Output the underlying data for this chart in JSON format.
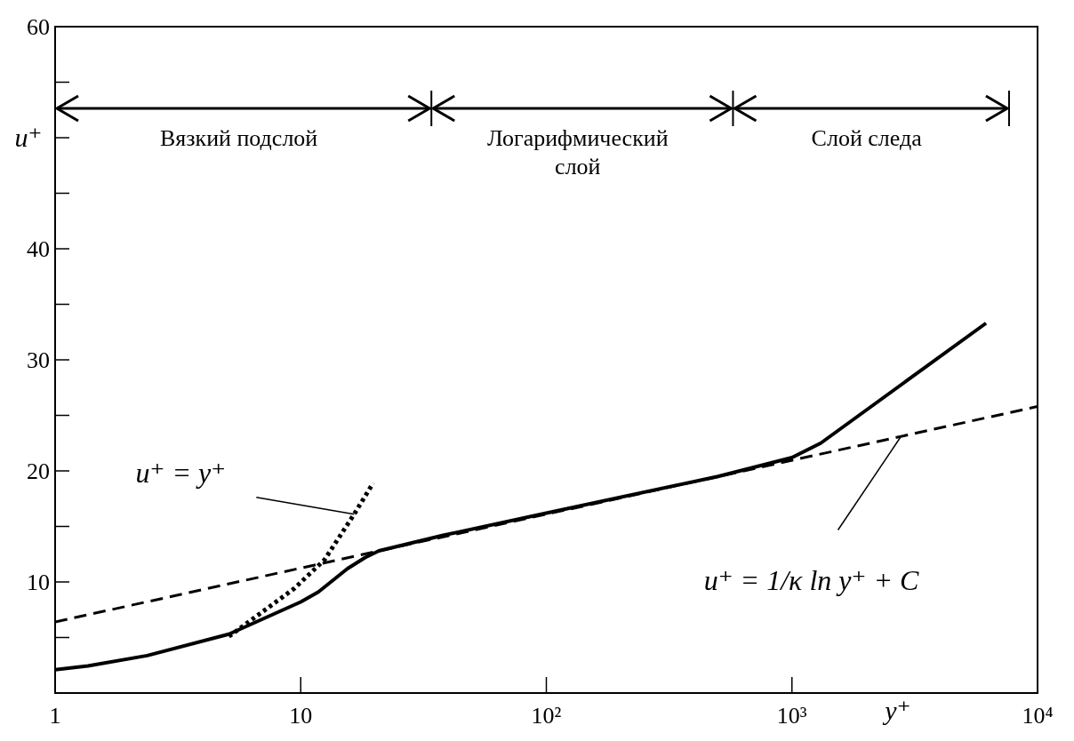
{
  "chart_data": {
    "type": "line",
    "xlabel": "y⁺",
    "ylabel": "u⁺",
    "log": "x",
    "xlim": [
      1,
      10000
    ],
    "xticks": [
      1,
      10,
      {
        "value": 100,
        "label": "10²"
      },
      {
        "value": 1000,
        "label": "10³"
      },
      {
        "value": 10000,
        "label": "10⁴"
      }
    ],
    "ylim": [
      0,
      60
    ],
    "yticks": [
      {
        "value": 5,
        "label": null
      },
      10,
      {
        "value": 15,
        "label": null
      },
      20,
      {
        "value": 25,
        "label": null
      },
      30,
      {
        "value": 35,
        "label": null
      },
      40,
      {
        "value": 45,
        "label": null
      },
      {
        "value": 50,
        "label": null
      },
      {
        "value": 55,
        "label": null
      },
      60
    ],
    "marker": "none",
    "series": [
      {
        "color": "#000000",
        "line_style": "solid",
        "x": [
          1,
          1.36,
          2.37,
          5.1,
          10,
          11.8,
          15.5,
          18.3,
          20.8,
          38,
          100,
          500,
          1000,
          1310,
          6170
        ],
        "values": [
          2.1,
          2.44,
          3.37,
          5.3,
          8.2,
          9.1,
          11.2,
          12.2,
          12.8,
          14.2,
          16.2,
          19.5,
          21.2,
          22.5,
          33.3
        ]
      },
      {
        "color": "#000000",
        "line_style": "dashed",
        "x": [
          1,
          10000
        ],
        "values": [
          6.4,
          25.8
        ]
      },
      {
        "color": "#000000",
        "line_style": "dotted",
        "x": [
          5.1,
          9.4,
          12.5,
          16.5,
          19.7
        ],
        "values": [
          5.1,
          9.4,
          12,
          16.1,
          18.9
        ]
      }
    ],
    "annotations": [
      "Вязкий подслой",
      "Логарифмический слой",
      "Слой следа",
      {
        "text": "u⁺ = y⁺",
        "x": 16.5,
        "y": 16.1
      },
      {
        "text": "u⁺ = 1/κ ln y⁺ + C",
        "x": 2760,
        "y": 23.0
      }
    ]
  }
}
